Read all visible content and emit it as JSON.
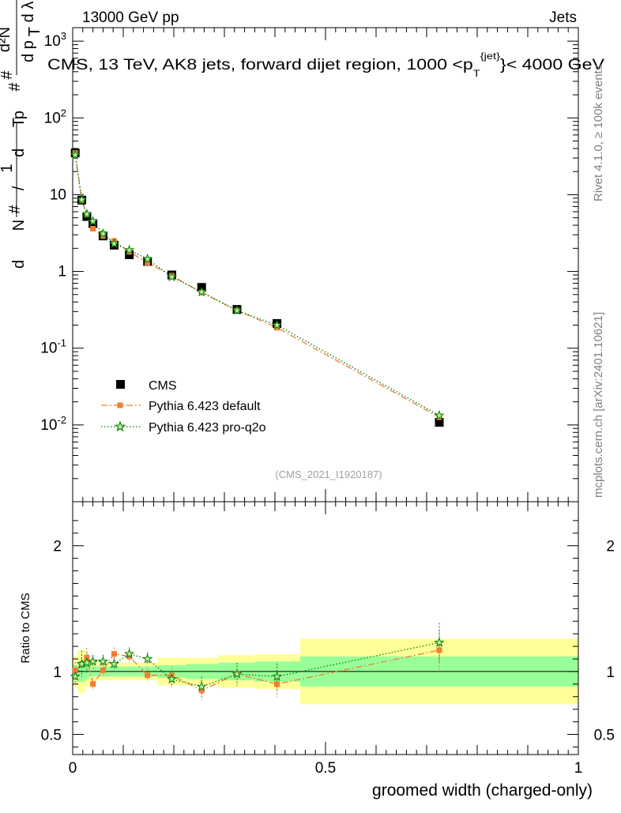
{
  "header": {
    "left": "13000 GeV pp",
    "right": "Jets",
    "plot_title": "CMS, 13 TeV, AK8 jets, forward dijet region, 1000 <p_T^{jet}< 4000 GeV",
    "side_label_top": "Rivet 4.1.0, ≥ 100k events",
    "side_label_bottom": "mcplots.cern.ch [arXiv:2401.10621]",
    "watermark": "(CMS_2021_I1920187)"
  },
  "chart_data": [
    {
      "type": "scatter",
      "panel": "main",
      "yscale": "log",
      "xlim": [
        0,
        1
      ],
      "ylim": [
        0.001,
        1500
      ],
      "ylabel": "1/(dN/dp_T) · d²N/(dp_T dλ)",
      "ytick_labels": [
        "10^{-2}",
        "10^{-1}",
        "1",
        "10",
        "10^{2}",
        "10^{3}"
      ],
      "x": [
        0.005,
        0.018,
        0.028,
        0.04,
        0.06,
        0.082,
        0.112,
        0.148,
        0.196,
        0.255,
        0.325,
        0.404,
        0.725
      ],
      "series": [
        {
          "name": "CMS",
          "values": [
            35,
            8.5,
            5.2,
            4.2,
            2.9,
            2.2,
            1.65,
            1.35,
            0.9,
            0.62,
            0.32,
            0.21,
            0.0108
          ]
        },
        {
          "name": "Pythia 6.423 default",
          "values": [
            35,
            8.4,
            5.5,
            3.6,
            2.9,
            2.5,
            1.8,
            1.3,
            0.88,
            0.53,
            0.31,
            0.185,
            0.0126
          ]
        },
        {
          "name": "Pythia 6.423 pro-q2o",
          "values": [
            33,
            8.6,
            5.6,
            4.5,
            3.1,
            2.3,
            1.9,
            1.45,
            0.85,
            0.54,
            0.31,
            0.2,
            0.0133
          ]
        }
      ],
      "legend": [
        "CMS",
        "Pythia 6.423 default",
        "Pythia 6.423 pro-q2o"
      ]
    },
    {
      "type": "scatter",
      "panel": "ratio",
      "xlim": [
        0,
        1
      ],
      "ylim": [
        0.34,
        2.35
      ],
      "xlabel": "groomed width (charged-only)",
      "ylabel": "Ratio to CMS",
      "xtick_labels": [
        "0",
        "0.5",
        "1"
      ],
      "ytick_labels": [
        "0.5",
        "1",
        "2"
      ],
      "x": [
        0.005,
        0.018,
        0.028,
        0.04,
        0.06,
        0.082,
        0.112,
        0.148,
        0.196,
        0.255,
        0.325,
        0.404,
        0.725
      ],
      "bin_edges": [
        0,
        0.01,
        0.025,
        0.033,
        0.048,
        0.07,
        0.095,
        0.13,
        0.168,
        0.225,
        0.288,
        0.36,
        0.45,
        1.0
      ],
      "band_inner": [
        0.05,
        0.08,
        0.06,
        0.04,
        0.04,
        0.04,
        0.04,
        0.04,
        0.05,
        0.06,
        0.07,
        0.08,
        0.12
      ],
      "band_outer": [
        0.12,
        0.17,
        0.12,
        0.08,
        0.07,
        0.07,
        0.07,
        0.07,
        0.11,
        0.11,
        0.13,
        0.14,
        0.26
      ],
      "series": [
        {
          "name": "Pythia 6.423 default",
          "values": [
            1.01,
            1.06,
            1.11,
            0.9,
            1.01,
            1.14,
            1.12,
            0.97,
            0.97,
            0.85,
            0.98,
            0.9,
            1.17
          ]
        },
        {
          "name": "Pythia 6.423 pro-q2o",
          "values": [
            0.96,
            1.06,
            1.07,
            1.08,
            1.08,
            1.06,
            1.14,
            1.1,
            0.94,
            0.88,
            0.98,
            0.96,
            1.23
          ]
        }
      ]
    }
  ]
}
